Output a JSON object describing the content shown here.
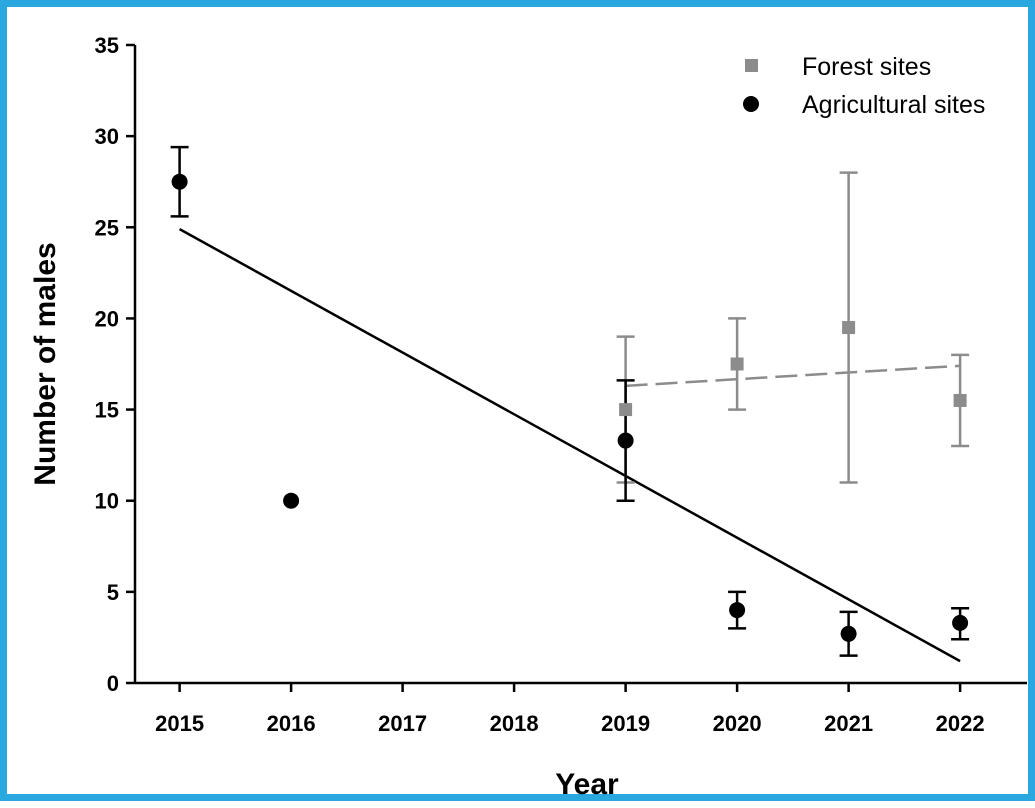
{
  "colors": {
    "frame_border": "#29a8e0",
    "forest": "#8c8c8c",
    "agricultural": "#000000"
  },
  "chart_data": {
    "type": "scatter",
    "title": "",
    "xlabel": "Year",
    "ylabel": "Number of males",
    "xlim": [
      2014.6,
      2022.6
    ],
    "ylim": [
      0,
      35
    ],
    "x_ticks": [
      2015,
      2016,
      2017,
      2018,
      2019,
      2020,
      2021,
      2022
    ],
    "y_ticks": [
      0,
      5,
      10,
      15,
      20,
      25,
      30,
      35
    ],
    "grid": false,
    "legend_position": "top-right",
    "series": [
      {
        "name": "Forest sites",
        "marker": "square",
        "color": "#8c8c8c",
        "points": [
          {
            "x": 2019,
            "y": 15.0,
            "low": 11.0,
            "high": 19.0
          },
          {
            "x": 2020,
            "y": 17.5,
            "low": 15.0,
            "high": 20.0
          },
          {
            "x": 2021,
            "y": 19.5,
            "low": 11.0,
            "high": 28.0
          },
          {
            "x": 2022,
            "y": 15.5,
            "low": 13.0,
            "high": 18.0
          }
        ],
        "trendline": {
          "style": "dashed",
          "x": [
            2019,
            2022
          ],
          "y": [
            16.3,
            17.4
          ]
        }
      },
      {
        "name": "Agricultural sites",
        "marker": "circle",
        "color": "#000000",
        "points": [
          {
            "x": 2015,
            "y": 27.5,
            "low": 25.6,
            "high": 29.4
          },
          {
            "x": 2016,
            "y": 10.0
          },
          {
            "x": 2019,
            "y": 13.3,
            "low": 10.0,
            "high": 16.6
          },
          {
            "x": 2020,
            "y": 4.0,
            "low": 3.0,
            "high": 5.0
          },
          {
            "x": 2021,
            "y": 2.7,
            "low": 1.5,
            "high": 3.9
          },
          {
            "x": 2022,
            "y": 3.3,
            "low": 2.4,
            "high": 4.1
          }
        ],
        "trendline": {
          "style": "solid",
          "x": [
            2015,
            2022
          ],
          "y": [
            24.9,
            1.2
          ]
        }
      }
    ]
  }
}
